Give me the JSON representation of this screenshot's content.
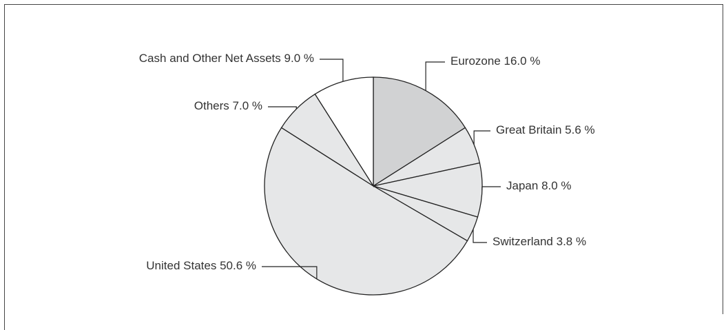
{
  "chart_data": {
    "type": "pie",
    "categories": [
      "Eurozone",
      "Great Britain",
      "Japan",
      "Switzerland",
      "United States",
      "Others",
      "Cash and Other Net Assets"
    ],
    "values": [
      16.0,
      5.6,
      8.0,
      3.8,
      50.6,
      7.0,
      9.0
    ],
    "value_labels": [
      "16.0 %",
      "5.6 %",
      "8.0 %",
      "3.8 %",
      "50.6 %",
      "7.0 %",
      "9.0 %"
    ],
    "colors": [
      "#d1d2d3",
      "#e6e7e8",
      "#e6e7e8",
      "#e6e7e8",
      "#e6e7e8",
      "#e6e7e8",
      "#ffffff"
    ]
  }
}
